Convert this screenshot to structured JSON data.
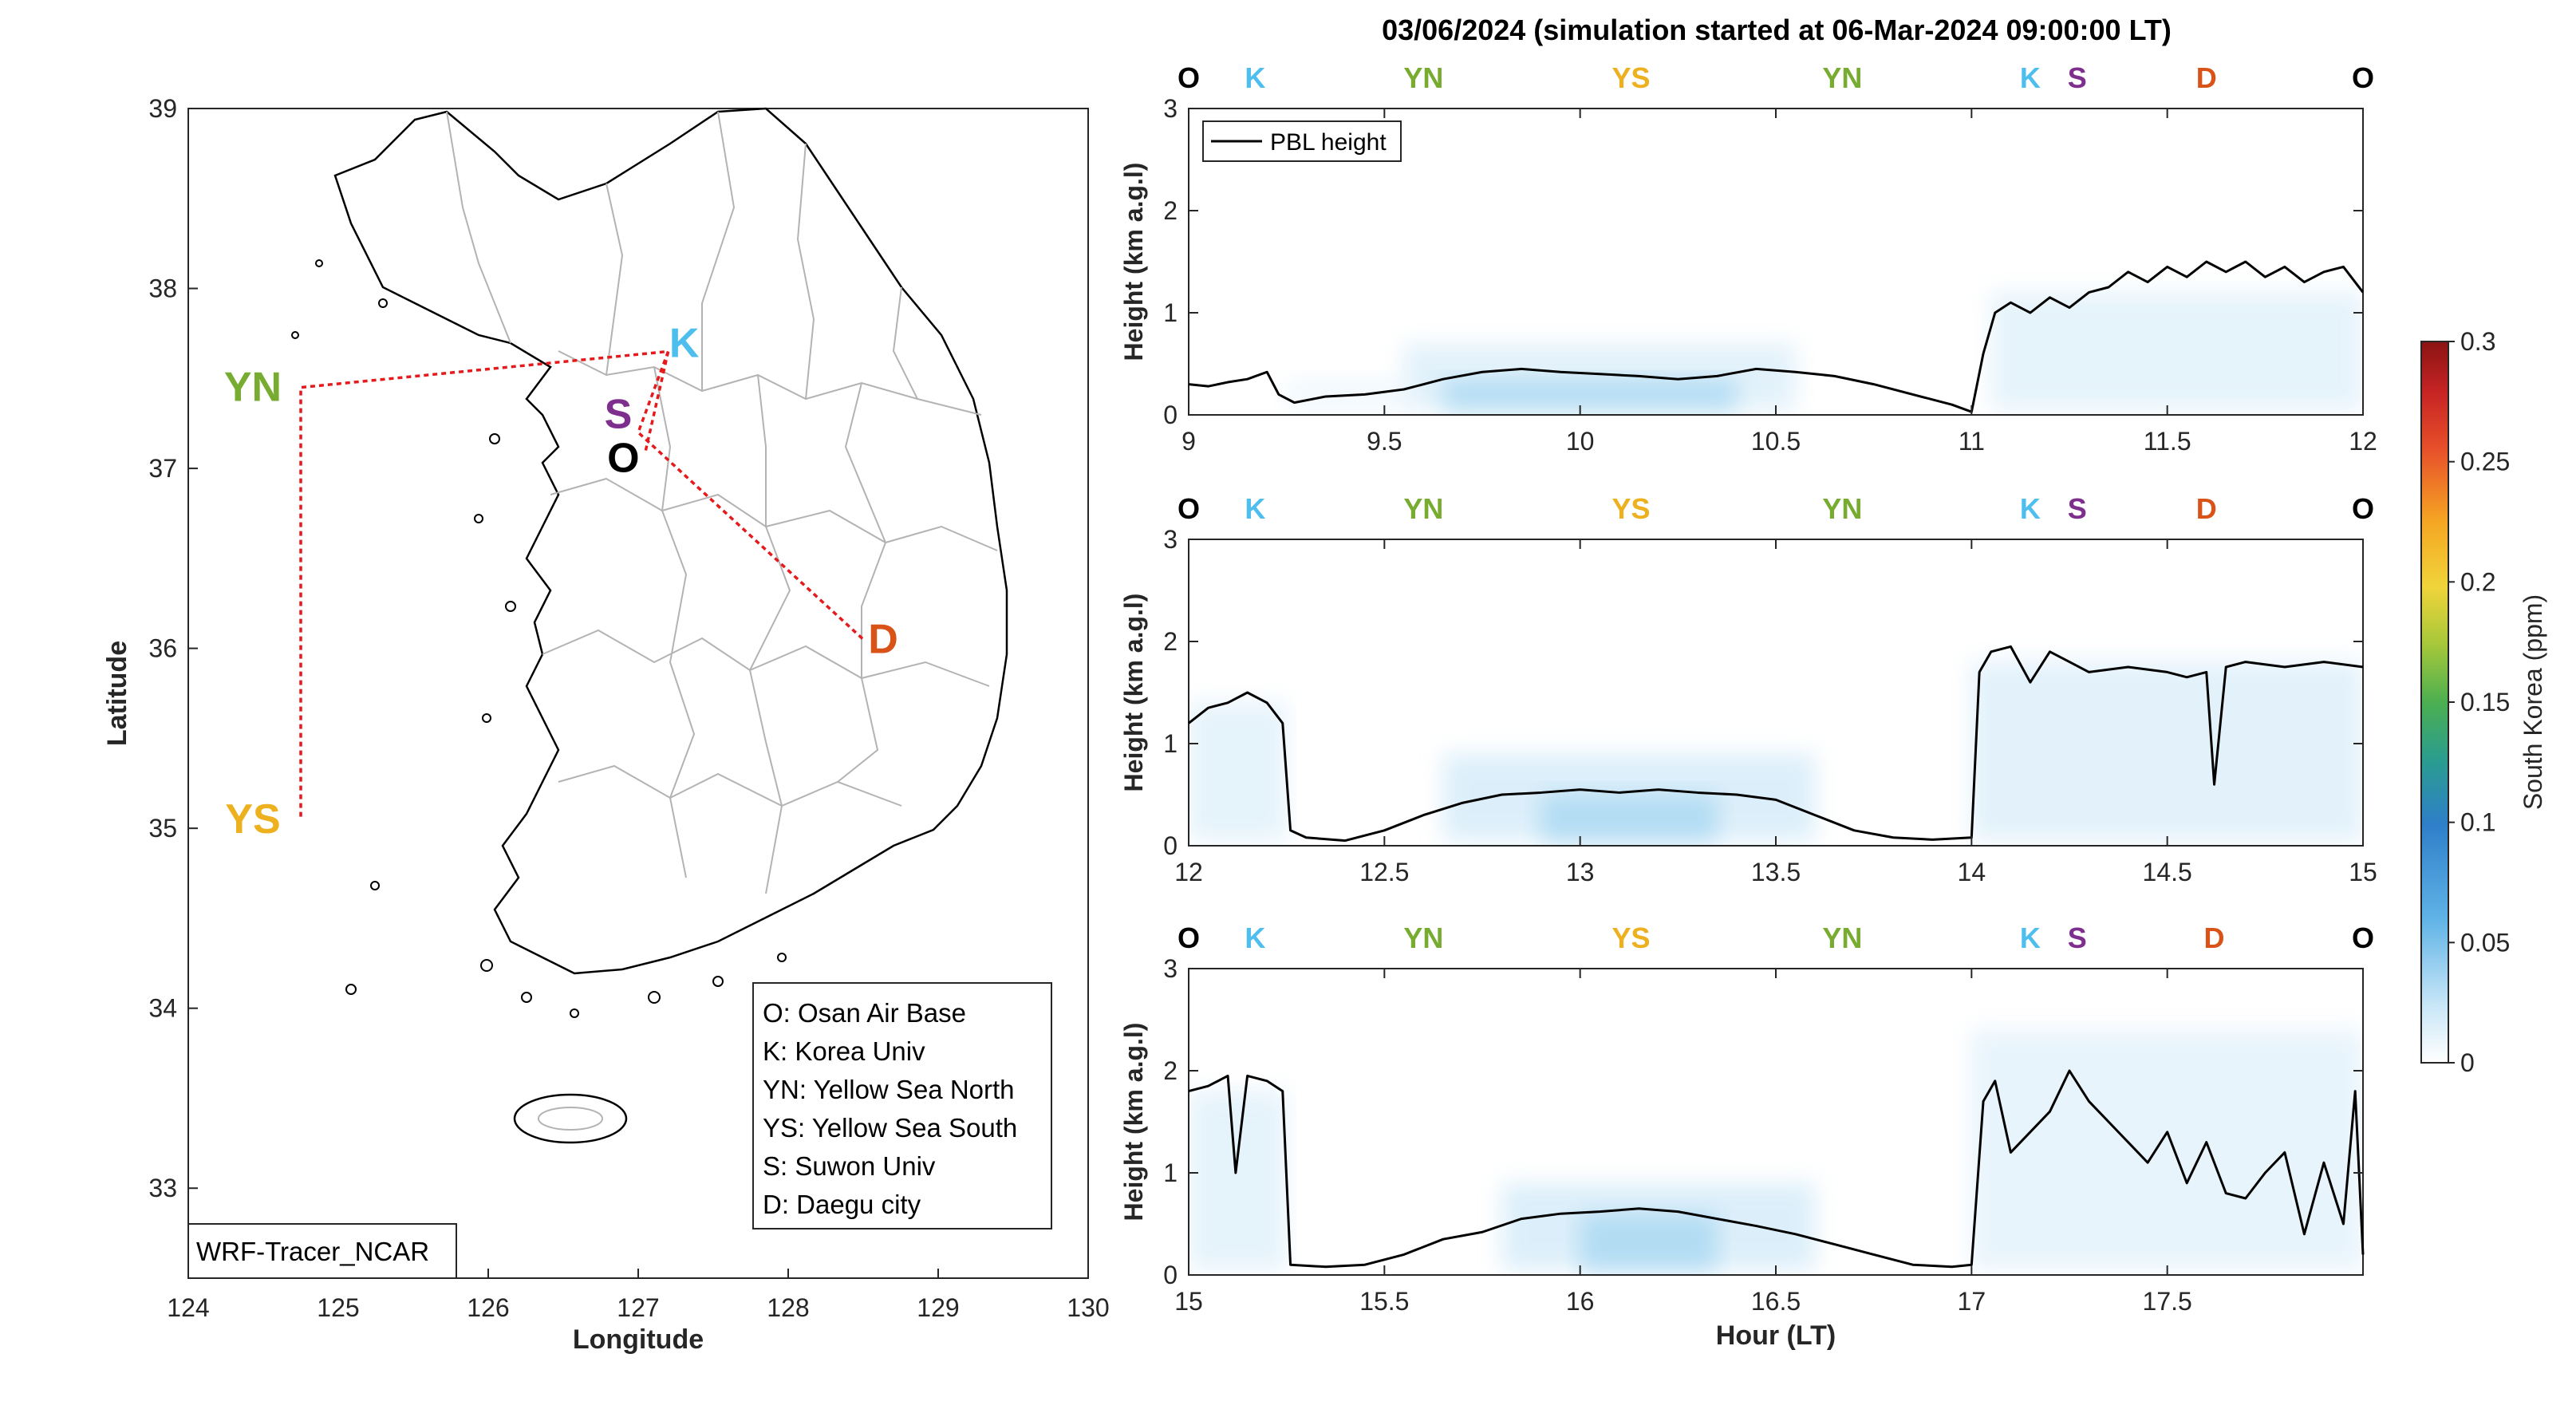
{
  "figure": {
    "title": "03/06/2024 (simulation started at 06-Mar-2024 09:00:00 LT)",
    "model_label": "WRF-Tracer_NCAR"
  },
  "colors": {
    "O": "#000000",
    "K": "#4DBEEE",
    "YN": "#77AC30",
    "YS": "#EDB120",
    "S": "#7E2F8E",
    "D": "#D95319",
    "route": "#E41A1C",
    "pbl": "#000000",
    "tracer_low": "#E4F3FC",
    "tracer_mid": "#A9D8F2"
  },
  "map": {
    "xlabel": "Longitude",
    "ylabel": "Latitude",
    "xlim": [
      124,
      130
    ],
    "ylim": [
      32.5,
      39
    ],
    "xticks": [
      "124",
      "125",
      "126",
      "127",
      "128",
      "129",
      "130"
    ],
    "yticks": [
      "33",
      "34",
      "35",
      "36",
      "37",
      "38",
      "39"
    ],
    "sites": [
      {
        "code": "YN",
        "lon": 124.75,
        "lat": 37.45
      },
      {
        "code": "YS",
        "lon": 124.75,
        "lat": 35.05
      },
      {
        "code": "K",
        "lon": 127.2,
        "lat": 37.65
      },
      {
        "code": "S",
        "lon": 127.0,
        "lat": 37.3
      },
      {
        "code": "O",
        "lon": 127.05,
        "lat": 37.1
      },
      {
        "code": "D",
        "lon": 128.5,
        "lat": 36.05
      }
    ],
    "route": [
      [
        127.05,
        37.1
      ],
      [
        127.2,
        37.65
      ],
      [
        124.75,
        37.45
      ],
      [
        124.75,
        35.05
      ]
    ],
    "route2": [
      [
        127.2,
        37.65
      ],
      [
        127.0,
        37.2
      ],
      [
        128.5,
        36.05
      ]
    ],
    "legend": [
      "O: Osan Air Base",
      "K: Korea Univ",
      "YN: Yellow Sea North",
      "YS: Yellow Sea South",
      "S: Suwon Univ",
      "D: Daegu city"
    ]
  },
  "chart_data": {
    "type": "line",
    "title": "03/06/2024 (simulation started at 06-Mar-2024 09:00:00 LT)",
    "xlabel": "Hour (LT)",
    "ylabel": "Height (km a.g.l)",
    "ylim": [
      0,
      3
    ],
    "series_name": "PBL height",
    "colorbar": {
      "label": "South Korea (ppm)",
      "ticks": [
        "0",
        "0.05",
        "0.1",
        "0.15",
        "0.2",
        "0.25",
        "0.3"
      ],
      "range": [
        0,
        0.3
      ]
    },
    "panels": [
      {
        "xlim": [
          9,
          12
        ],
        "xticks": [
          "9",
          "9.5",
          "10",
          "10.5",
          "11",
          "11.5",
          "12"
        ],
        "yticks": [
          "0",
          "1",
          "2",
          "3"
        ],
        "site_markers": [
          {
            "code": "O",
            "x": 9.0
          },
          {
            "code": "K",
            "x": 9.17
          },
          {
            "code": "YN",
            "x": 9.6
          },
          {
            "code": "YS",
            "x": 10.13
          },
          {
            "code": "YN",
            "x": 10.67
          },
          {
            "code": "K",
            "x": 11.15
          },
          {
            "code": "S",
            "x": 11.27
          },
          {
            "code": "D",
            "x": 11.6
          },
          {
            "code": "O",
            "x": 12.0
          }
        ],
        "x": [
          9.0,
          9.05,
          9.1,
          9.15,
          9.2,
          9.23,
          9.27,
          9.35,
          9.45,
          9.55,
          9.65,
          9.75,
          9.85,
          9.95,
          10.05,
          10.15,
          10.25,
          10.35,
          10.45,
          10.55,
          10.65,
          10.75,
          10.85,
          10.95,
          11.0,
          11.03,
          11.06,
          11.1,
          11.15,
          11.2,
          11.25,
          11.3,
          11.35,
          11.4,
          11.45,
          11.5,
          11.55,
          11.6,
          11.65,
          11.7,
          11.75,
          11.8,
          11.85,
          11.9,
          11.95,
          12.0
        ],
        "values": [
          0.3,
          0.28,
          0.32,
          0.35,
          0.42,
          0.2,
          0.12,
          0.18,
          0.2,
          0.25,
          0.35,
          0.42,
          0.45,
          0.42,
          0.4,
          0.38,
          0.35,
          0.38,
          0.45,
          0.42,
          0.38,
          0.3,
          0.2,
          0.1,
          0.03,
          0.6,
          1.0,
          1.1,
          1.0,
          1.15,
          1.05,
          1.2,
          1.25,
          1.4,
          1.3,
          1.45,
          1.35,
          1.5,
          1.4,
          1.5,
          1.35,
          1.45,
          1.3,
          1.4,
          1.45,
          1.2
        ],
        "tracer_bands": [
          [
            9.25,
            9.55,
            0.35,
            0.12
          ],
          [
            9.55,
            10.55,
            0.7,
            0.25
          ],
          [
            9.65,
            10.4,
            0.35,
            0.45
          ],
          [
            11.05,
            12.0,
            1.2,
            0.22
          ]
        ]
      },
      {
        "xlim": [
          12,
          15
        ],
        "xticks": [
          "12",
          "12.5",
          "13",
          "13.5",
          "14",
          "14.5",
          "15"
        ],
        "yticks": [
          "0",
          "1",
          "2",
          "3"
        ],
        "site_markers": [
          {
            "code": "O",
            "x": 12.0
          },
          {
            "code": "K",
            "x": 12.17
          },
          {
            "code": "YN",
            "x": 12.6
          },
          {
            "code": "YS",
            "x": 13.13
          },
          {
            "code": "YN",
            "x": 13.67
          },
          {
            "code": "K",
            "x": 14.15
          },
          {
            "code": "S",
            "x": 14.27
          },
          {
            "code": "D",
            "x": 14.6
          },
          {
            "code": "O",
            "x": 15.0
          }
        ],
        "x": [
          12.0,
          12.05,
          12.1,
          12.15,
          12.2,
          12.24,
          12.26,
          12.3,
          12.4,
          12.5,
          12.6,
          12.7,
          12.8,
          12.9,
          13.0,
          13.1,
          13.2,
          13.3,
          13.4,
          13.5,
          13.6,
          13.7,
          13.8,
          13.9,
          14.0,
          14.02,
          14.05,
          14.1,
          14.15,
          14.2,
          14.25,
          14.3,
          14.4,
          14.5,
          14.55,
          14.6,
          14.62,
          14.65,
          14.7,
          14.8,
          14.9,
          15.0
        ],
        "values": [
          1.2,
          1.35,
          1.4,
          1.5,
          1.4,
          1.2,
          0.15,
          0.08,
          0.05,
          0.15,
          0.3,
          0.42,
          0.5,
          0.52,
          0.55,
          0.52,
          0.55,
          0.52,
          0.5,
          0.45,
          0.3,
          0.15,
          0.08,
          0.06,
          0.08,
          1.7,
          1.9,
          1.95,
          1.6,
          1.9,
          1.8,
          1.7,
          1.75,
          1.7,
          1.65,
          1.7,
          0.6,
          1.75,
          1.8,
          1.75,
          1.8,
          1.75
        ],
        "tracer_bands": [
          [
            12.0,
            12.25,
            1.4,
            0.22
          ],
          [
            12.65,
            13.6,
            0.9,
            0.3
          ],
          [
            12.9,
            13.35,
            0.5,
            0.45
          ],
          [
            14.0,
            15.0,
            1.8,
            0.25
          ]
        ]
      },
      {
        "xlim": [
          15,
          18
        ],
        "xticks": [
          "15",
          "15.5",
          "16",
          "16.5",
          "17",
          "17.5"
        ],
        "yticks": [
          "0",
          "1",
          "2",
          "3"
        ],
        "site_markers": [
          {
            "code": "O",
            "x": 15.0
          },
          {
            "code": "K",
            "x": 15.17
          },
          {
            "code": "YN",
            "x": 15.6
          },
          {
            "code": "YS",
            "x": 16.13
          },
          {
            "code": "YN",
            "x": 16.67
          },
          {
            "code": "K",
            "x": 17.15
          },
          {
            "code": "S",
            "x": 17.27
          },
          {
            "code": "D",
            "x": 17.62
          },
          {
            "code": "O",
            "x": 18.0
          }
        ],
        "x": [
          15.0,
          15.05,
          15.1,
          15.12,
          15.15,
          15.2,
          15.24,
          15.26,
          15.35,
          15.45,
          15.55,
          15.65,
          15.75,
          15.85,
          15.95,
          16.05,
          16.15,
          16.25,
          16.35,
          16.45,
          16.55,
          16.65,
          16.75,
          16.85,
          16.95,
          17.0,
          17.03,
          17.06,
          17.1,
          17.15,
          17.2,
          17.25,
          17.3,
          17.35,
          17.4,
          17.45,
          17.5,
          17.55,
          17.6,
          17.65,
          17.7,
          17.75,
          17.8,
          17.85,
          17.9,
          17.95,
          17.98,
          18.0
        ],
        "values": [
          1.8,
          1.85,
          1.95,
          1.0,
          1.95,
          1.9,
          1.8,
          0.1,
          0.08,
          0.1,
          0.2,
          0.35,
          0.42,
          0.55,
          0.6,
          0.62,
          0.65,
          0.62,
          0.55,
          0.48,
          0.4,
          0.3,
          0.2,
          0.1,
          0.08,
          0.1,
          1.7,
          1.9,
          1.2,
          1.4,
          1.6,
          2.0,
          1.7,
          1.5,
          1.3,
          1.1,
          1.4,
          0.9,
          1.3,
          0.8,
          0.75,
          1.0,
          1.2,
          0.4,
          1.1,
          0.5,
          1.8,
          0.2
        ],
        "tracer_bands": [
          [
            15.0,
            15.25,
            1.8,
            0.22
          ],
          [
            15.8,
            16.6,
            0.9,
            0.3
          ],
          [
            16.0,
            16.35,
            0.6,
            0.45
          ],
          [
            17.0,
            18.0,
            2.4,
            0.2
          ]
        ]
      }
    ]
  }
}
